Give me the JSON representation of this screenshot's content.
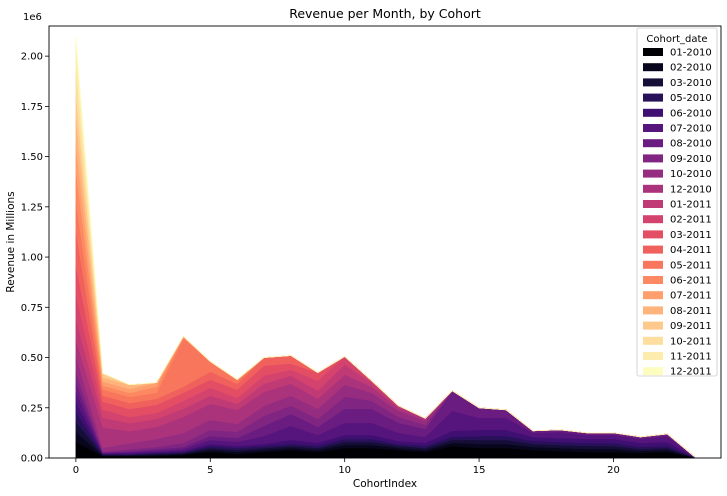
{
  "chart_data": {
    "type": "area",
    "stacked": true,
    "title": "Revenue per Month, by Cohort",
    "xlabel": "CohortIndex",
    "ylabel": "Revenue in Millions",
    "y_offset_label": "1e6",
    "xlim": [
      -1,
      24
    ],
    "ylim": [
      0,
      2.15
    ],
    "x_ticks": [
      0,
      5,
      10,
      15,
      20
    ],
    "y_ticks": [
      0.0,
      0.25,
      0.5,
      0.75,
      1.0,
      1.25,
      1.5,
      1.75,
      2.0
    ],
    "y_tick_labels": [
      "0.00",
      "0.25",
      "0.50",
      "0.75",
      "1.00",
      "1.25",
      "1.50",
      "1.75",
      "2.00"
    ],
    "grid": false,
    "legend_title": "Cohort_date",
    "legend_position": "top-right",
    "x": [
      0,
      1,
      2,
      3,
      4,
      5,
      6,
      7,
      8,
      9,
      10,
      11,
      12,
      13,
      14,
      15,
      16,
      17,
      18,
      19,
      20,
      21,
      22,
      23
    ],
    "series": [
      {
        "name": "01-2010",
        "color": "#000004",
        "values": [
          0.08,
          0.01,
          0.01,
          0.01,
          0.015,
          0.03,
          0.02,
          0.03,
          0.04,
          0.03,
          0.05,
          0.05,
          0.04,
          0.03,
          0.06,
          0.05,
          0.05,
          0.04,
          0.035,
          0.03,
          0.03,
          0.025,
          0.03,
          0.002
        ]
      },
      {
        "name": "02-2010",
        "color": "#07061c",
        "values": [
          0.05,
          0.003,
          0.003,
          0.005,
          0.005,
          0.01,
          0.01,
          0.01,
          0.01,
          0.01,
          0.015,
          0.015,
          0.01,
          0.01,
          0.015,
          0.02,
          0.02,
          0.015,
          0.015,
          0.015,
          0.015,
          0.01,
          0.01,
          0.001
        ]
      },
      {
        "name": "03-2010",
        "color": "#150e37",
        "values": [
          0.05,
          0.003,
          0.003,
          0.005,
          0.005,
          0.01,
          0.01,
          0.01,
          0.01,
          0.01,
          0.015,
          0.015,
          0.01,
          0.01,
          0.015,
          0.02,
          0.02,
          0.015,
          0.015,
          0.015,
          0.015,
          0.01,
          0.01,
          0.001
        ]
      },
      {
        "name": "05-2010",
        "color": "#29115a",
        "values": [
          0.05,
          0.003,
          0.003,
          0.005,
          0.005,
          0.01,
          0.01,
          0.01,
          0.01,
          0.01,
          0.015,
          0.015,
          0.01,
          0.01,
          0.015,
          0.02,
          0.02,
          0.015,
          0.015,
          0.015,
          0.015,
          0.01,
          0.01,
          0.001
        ]
      },
      {
        "name": "06-2010",
        "color": "#3f0f72",
        "values": [
          0.05,
          0.003,
          0.005,
          0.005,
          0.005,
          0.01,
          0.01,
          0.01,
          0.02,
          0.015,
          0.02,
          0.02,
          0.015,
          0.015,
          0.03,
          0.03,
          0.03,
          0.02,
          0.02,
          0.02,
          0.02,
          0.02,
          0.02,
          0.001
        ]
      },
      {
        "name": "07-2010",
        "color": "#56147d",
        "values": [
          0.05,
          0.003,
          0.005,
          0.005,
          0.01,
          0.02,
          0.02,
          0.04,
          0.07,
          0.04,
          0.06,
          0.06,
          0.04,
          0.03,
          0.1,
          0.06,
          0.06,
          0.02,
          0.03,
          0.02,
          0.02,
          0.02,
          0.03,
          0.001
        ]
      },
      {
        "name": "08-2010",
        "color": "#6a1c81",
        "values": [
          0.05,
          0.003,
          0.005,
          0.01,
          0.01,
          0.02,
          0.02,
          0.05,
          0.06,
          0.04,
          0.07,
          0.07,
          0.05,
          0.04,
          0.1,
          0.05,
          0.04,
          0.01,
          0.01,
          0.01,
          0.01,
          0.01,
          0.01,
          0.001
        ]
      },
      {
        "name": "09-2010",
        "color": "#802582",
        "values": [
          0.05,
          0.003,
          0.01,
          0.01,
          0.02,
          0.03,
          0.03,
          0.05,
          0.04,
          0.04,
          0.06,
          0.04,
          0.03,
          0.02,
          0.0,
          0.0,
          0.0,
          0.0,
          0.0,
          0.0,
          0.0,
          0.0,
          0.0,
          0.0
        ]
      },
      {
        "name": "10-2010",
        "color": "#952c80",
        "values": [
          0.08,
          0.02,
          0.03,
          0.04,
          0.05,
          0.05,
          0.04,
          0.05,
          0.05,
          0.05,
          0.06,
          0.04,
          0.03,
          0.02,
          0.0,
          0.0,
          0.0,
          0.0,
          0.0,
          0.0,
          0.0,
          0.0,
          0.0,
          0.0
        ]
      },
      {
        "name": "12-2010",
        "color": "#ab337c",
        "values": [
          0.08,
          0.1,
          0.06,
          0.06,
          0.08,
          0.08,
          0.07,
          0.07,
          0.06,
          0.05,
          0.05,
          0.03,
          0.015,
          0.012,
          0.0,
          0.0,
          0.0,
          0.0,
          0.0,
          0.0,
          0.0,
          0.0,
          0.0,
          0.0
        ]
      },
      {
        "name": "01-2011",
        "color": "#c03a76",
        "values": [
          0.1,
          0.05,
          0.04,
          0.04,
          0.04,
          0.04,
          0.03,
          0.04,
          0.04,
          0.04,
          0.05,
          0.02,
          0.01,
          0.0,
          0.0,
          0.0,
          0.0,
          0.0,
          0.0,
          0.0,
          0.0,
          0.0,
          0.0,
          0.0
        ]
      },
      {
        "name": "02-2011",
        "color": "#d3436e",
        "values": [
          0.12,
          0.04,
          0.03,
          0.03,
          0.04,
          0.04,
          0.03,
          0.04,
          0.03,
          0.05,
          0.04,
          0.01,
          0.0,
          0.0,
          0.0,
          0.0,
          0.0,
          0.0,
          0.0,
          0.0,
          0.0,
          0.0,
          0.0,
          0.0
        ]
      },
      {
        "name": "03-2011",
        "color": "#e34e65",
        "values": [
          0.15,
          0.04,
          0.04,
          0.04,
          0.04,
          0.04,
          0.04,
          0.05,
          0.03,
          0.04,
          0.0,
          0.0,
          0.0,
          0.0,
          0.0,
          0.0,
          0.0,
          0.0,
          0.0,
          0.0,
          0.0,
          0.0,
          0.0,
          0.0
        ]
      },
      {
        "name": "04-2011",
        "color": "#f0605d",
        "values": [
          0.17,
          0.03,
          0.03,
          0.03,
          0.03,
          0.04,
          0.03,
          0.04,
          0.04,
          0.0,
          0.0,
          0.0,
          0.0,
          0.0,
          0.0,
          0.0,
          0.0,
          0.0,
          0.0,
          0.0,
          0.0,
          0.0,
          0.0,
          0.0
        ]
      },
      {
        "name": "05-2011",
        "color": "#f8765c",
        "values": [
          0.15,
          0.03,
          0.03,
          0.03,
          0.24,
          0.05,
          0.02,
          0.0,
          0.0,
          0.0,
          0.0,
          0.0,
          0.0,
          0.0,
          0.0,
          0.0,
          0.0,
          0.0,
          0.0,
          0.0,
          0.0,
          0.0,
          0.0,
          0.0
        ]
      },
      {
        "name": "06-2011",
        "color": "#fc8961",
        "values": [
          0.15,
          0.02,
          0.02,
          0.03,
          0.01,
          0.0,
          0.0,
          0.0,
          0.0,
          0.0,
          0.0,
          0.0,
          0.0,
          0.0,
          0.0,
          0.0,
          0.0,
          0.0,
          0.0,
          0.0,
          0.0,
          0.0,
          0.0,
          0.0
        ]
      },
      {
        "name": "07-2011",
        "color": "#fe9f6d",
        "values": [
          0.13,
          0.02,
          0.02,
          0.02,
          0.0,
          0.0,
          0.0,
          0.0,
          0.0,
          0.0,
          0.0,
          0.0,
          0.0,
          0.0,
          0.0,
          0.0,
          0.0,
          0.0,
          0.0,
          0.0,
          0.0,
          0.0,
          0.0,
          0.0
        ]
      },
      {
        "name": "08-2011",
        "color": "#feb47b",
        "values": [
          0.13,
          0.02,
          0.02,
          0.0,
          0.0,
          0.0,
          0.0,
          0.0,
          0.0,
          0.0,
          0.0,
          0.0,
          0.0,
          0.0,
          0.0,
          0.0,
          0.0,
          0.0,
          0.0,
          0.0,
          0.0,
          0.0,
          0.0,
          0.0
        ]
      },
      {
        "name": "09-2011",
        "color": "#fec98d",
        "values": [
          0.12,
          0.02,
          0.0,
          0.0,
          0.0,
          0.0,
          0.0,
          0.0,
          0.0,
          0.0,
          0.0,
          0.0,
          0.0,
          0.0,
          0.0,
          0.0,
          0.0,
          0.0,
          0.0,
          0.0,
          0.0,
          0.0,
          0.0,
          0.0
        ]
      },
      {
        "name": "10-2011",
        "color": "#fdde9f",
        "values": [
          0.13,
          0.0,
          0.0,
          0.0,
          0.0,
          0.0,
          0.0,
          0.0,
          0.0,
          0.0,
          0.0,
          0.0,
          0.0,
          0.0,
          0.0,
          0.0,
          0.0,
          0.0,
          0.0,
          0.0,
          0.0,
          0.0,
          0.0,
          0.0
        ]
      },
      {
        "name": "11-2011",
        "color": "#fcedae",
        "values": [
          0.12,
          0.0,
          0.0,
          0.0,
          0.0,
          0.0,
          0.0,
          0.0,
          0.0,
          0.0,
          0.0,
          0.0,
          0.0,
          0.0,
          0.0,
          0.0,
          0.0,
          0.0,
          0.0,
          0.0,
          0.0,
          0.0,
          0.0,
          0.0
        ]
      },
      {
        "name": "12-2011",
        "color": "#fcfdbf",
        "values": [
          0.04,
          0.0,
          0.0,
          0.0,
          0.0,
          0.0,
          0.0,
          0.0,
          0.0,
          0.0,
          0.0,
          0.0,
          0.0,
          0.0,
          0.0,
          0.0,
          0.0,
          0.0,
          0.0,
          0.0,
          0.0,
          0.0,
          0.0,
          0.0
        ]
      }
    ]
  }
}
